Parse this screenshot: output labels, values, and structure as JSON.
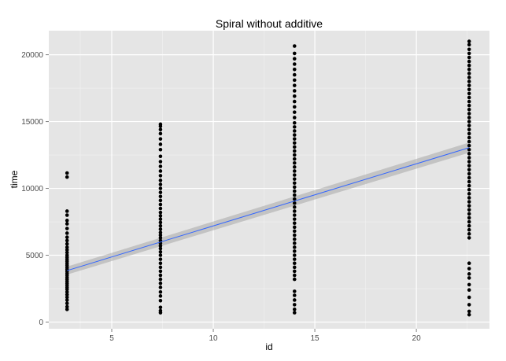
{
  "chart_data": {
    "type": "scatter",
    "title": "Spiral without additive",
    "xlabel": "id",
    "ylabel": "time",
    "xlim": [
      1.9,
      23.6
    ],
    "ylim": [
      -500,
      21800
    ],
    "xticks": [
      5,
      10,
      15,
      20
    ],
    "yticks": [
      0,
      5000,
      10000,
      15000,
      20000
    ],
    "grid": true,
    "colors": {
      "panel": "#e5e5e5",
      "grid_major": "#ffffff",
      "grid_minor": "#f2f2f2",
      "points": "#000000",
      "line": "#3366ff",
      "ribbon": "#999999"
    },
    "point_groups": [
      {
        "x": 2.8,
        "y": [
          950,
          1150,
          1400,
          1650,
          1850,
          2050,
          2250,
          2450,
          2600,
          2750,
          2900,
          3050,
          3200,
          3350,
          3500,
          3650,
          3800,
          3950,
          4100,
          4250,
          4400,
          4550,
          4700,
          4850,
          5000,
          5200,
          5400,
          5600,
          5850,
          6100,
          6350,
          6650,
          7000,
          7350,
          7600,
          8000,
          8300,
          10850,
          11150
        ]
      },
      {
        "x": 7.4,
        "y": [
          700,
          850,
          1100,
          1600,
          1950,
          2250,
          2600,
          2900,
          3200,
          3500,
          3800,
          4100,
          4400,
          4700,
          5000,
          5250,
          5500,
          5700,
          5900,
          6100,
          6300,
          6500,
          6700,
          6950,
          7200,
          7450,
          7700,
          7950,
          8200,
          8500,
          8800,
          9100,
          9400,
          9700,
          10000,
          10300,
          10600,
          10950,
          11300,
          11650,
          12000,
          12400,
          12900,
          13300,
          13700,
          14100,
          14400,
          14650,
          14800
        ]
      },
      {
        "x": 14.0,
        "y": [
          700,
          950,
          1300,
          1650,
          2000,
          2300,
          3200,
          3500,
          3800,
          4100,
          4400,
          4700,
          5000,
          5300,
          5600,
          5900,
          6200,
          6500,
          6800,
          7100,
          7400,
          7700,
          8000,
          8300,
          8600,
          8900,
          9200,
          9500,
          9800,
          10100,
          10400,
          10700,
          11000,
          11300,
          11600,
          11900,
          12200,
          12500,
          12800,
          13100,
          13400,
          13700,
          14000,
          14300,
          14600,
          14900,
          15300,
          15700,
          16100,
          16500,
          16900,
          17300,
          17700,
          18100,
          18500,
          18900,
          19300,
          19700,
          20100,
          20650
        ]
      },
      {
        "x": 22.6,
        "y": [
          550,
          800,
          1300,
          1850,
          2400,
          2800,
          3300,
          3600,
          4000,
          4400,
          6300,
          6600,
          6900,
          7200,
          7500,
          7800,
          8100,
          8400,
          8700,
          9000,
          9300,
          9600,
          9900,
          10200,
          10500,
          10800,
          11100,
          11400,
          11700,
          12000,
          12300,
          12600,
          12900,
          13200,
          13500,
          13800,
          14100,
          14400,
          14700,
          15000,
          15300,
          15600,
          15900,
          16200,
          16500,
          16800,
          17100,
          17400,
          17700,
          18000,
          18300,
          18600,
          18900,
          19200,
          19500,
          19800,
          20100,
          20400,
          20750,
          21000
        ]
      }
    ],
    "fit": {
      "x": [
        2.8,
        22.6
      ],
      "y": [
        3850,
        13050
      ],
      "ci_halfwidth": [
        300,
        380
      ]
    }
  }
}
